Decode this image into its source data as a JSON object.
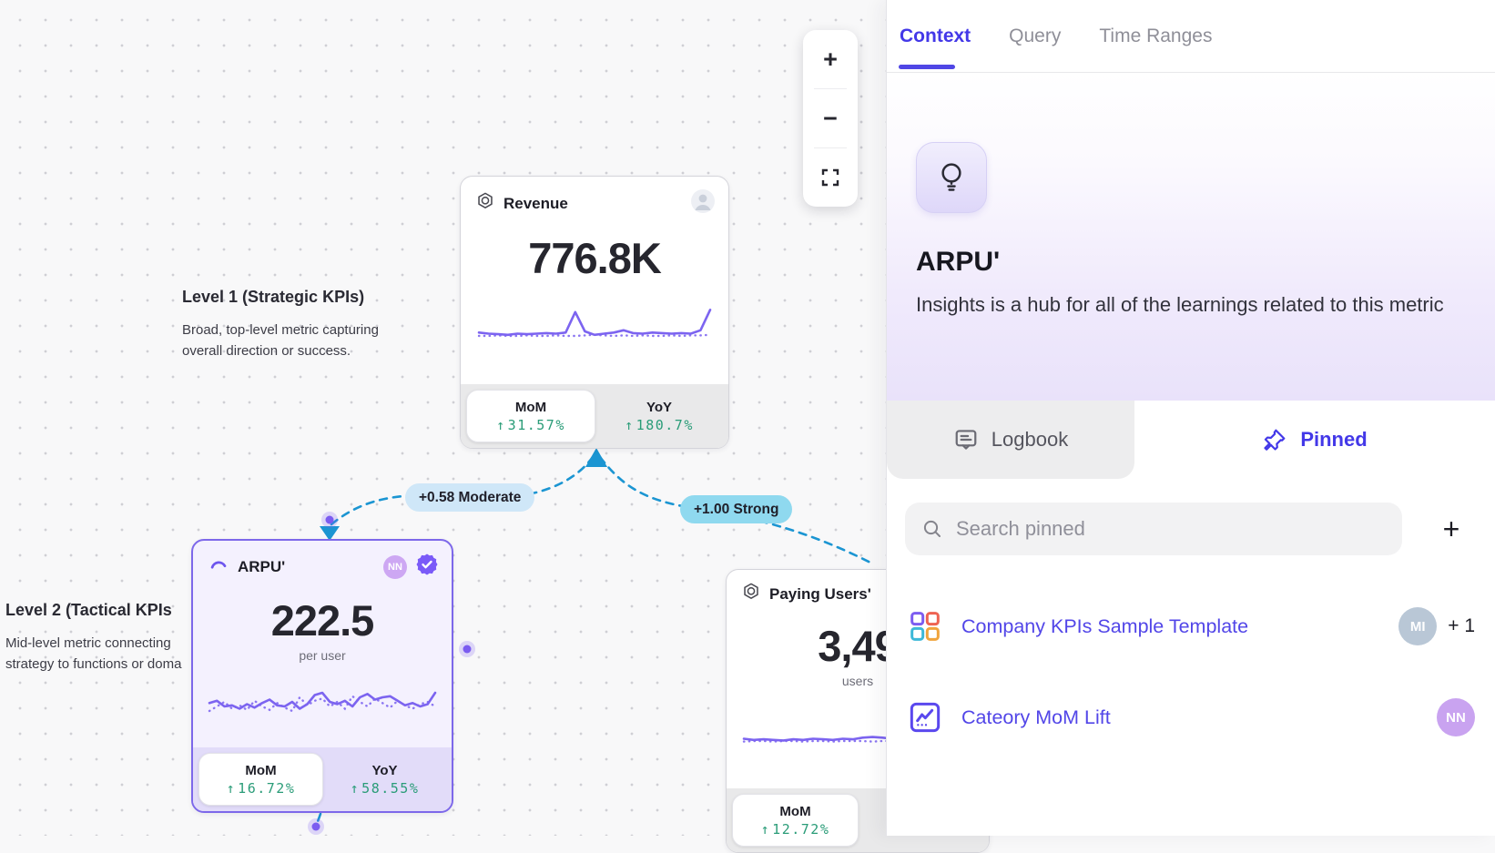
{
  "canvas": {
    "zoom_toolbar": {
      "zoom_in": "+",
      "zoom_out": "−"
    },
    "levels": [
      {
        "title": "Level 1 (Strategic KPIs)",
        "line1": "Broad, top-level metric capturing",
        "line2": "overall direction or success."
      },
      {
        "title": "Level 2 (Tactical KPIs",
        "line1": "Mid-level metric connecting",
        "line2": "strategy to functions or doma"
      }
    ],
    "edges": [
      {
        "label": "+0.58 Moderate",
        "strength": "moderate"
      },
      {
        "label": "+1.00 Strong",
        "strength": "strong"
      }
    ],
    "cards": {
      "revenue": {
        "title": "Revenue",
        "value": "776.8K",
        "stats": [
          {
            "label": "MoM",
            "dir": "↑",
            "value": "31.57%",
            "active": true
          },
          {
            "label": "YoY",
            "dir": "↑",
            "value": "180.7%",
            "active": false
          }
        ]
      },
      "arpu": {
        "title": "ARPU'",
        "value": "222.5",
        "unit": "per user",
        "avatar": "NN",
        "selected": true,
        "stats": [
          {
            "label": "MoM",
            "dir": "↑",
            "value": "16.72%",
            "active": true
          },
          {
            "label": "YoY",
            "dir": "↑",
            "value": "58.55%",
            "active": false
          }
        ]
      },
      "paying": {
        "title": "Paying Users'",
        "value": "3,49",
        "unit": "users",
        "stats": [
          {
            "label": "MoM",
            "dir": "↑",
            "value": "12.72%",
            "active": true
          }
        ]
      }
    },
    "sparklines": {
      "revenue": {
        "solid": [
          29,
          30,
          30.5,
          31,
          30,
          30.5,
          30,
          29.5,
          30,
          29,
          11,
          28,
          31,
          30,
          29,
          27,
          29.5,
          30,
          29,
          29.5,
          30,
          29.5,
          30,
          27,
          9
        ],
        "dotted": [
          32,
          32,
          31.5,
          32,
          32,
          31.5,
          32,
          32,
          31.5,
          32,
          32,
          31.5,
          31,
          31.5,
          32,
          31.5,
          32,
          31.5,
          32,
          32,
          31.5,
          32,
          31.5,
          31.5,
          31
        ]
      },
      "arpu": {
        "solid": [
          21,
          19,
          24,
          23,
          26,
          22,
          25,
          21,
          18,
          23,
          24,
          20,
          26,
          22,
          14,
          12,
          20,
          22,
          19,
          24,
          16,
          13,
          18,
          16,
          15,
          19,
          23,
          21,
          24,
          22,
          12
        ],
        "dotted": [
          28,
          24,
          20,
          26,
          23,
          27,
          19,
          24,
          27,
          21,
          25,
          28,
          16,
          23,
          19,
          17,
          24,
          20,
          26,
          15,
          20,
          24,
          17,
          21,
          25,
          19,
          23,
          26,
          22,
          20,
          24
        ]
      },
      "paying": {
        "solid": [
          30,
          31,
          30.5,
          31,
          31.5,
          30.5,
          31,
          30,
          30.5,
          31,
          30,
          30.5,
          29,
          28.5,
          29,
          30,
          29.5,
          28,
          9,
          18,
          29,
          30.5,
          30,
          29.5
        ],
        "dotted": [
          32.5,
          32,
          32,
          32.5,
          32,
          32,
          32.5,
          32,
          32,
          32.5,
          32,
          32,
          32,
          32.5,
          32,
          32,
          32.5,
          32,
          32,
          32,
          32.5,
          32,
          32,
          32
        ]
      }
    }
  },
  "panel": {
    "tabs": [
      {
        "label": "Context"
      },
      {
        "label": "Query"
      },
      {
        "label": "Time Ranges"
      }
    ],
    "insight": {
      "title": "ARPU'",
      "description": "Insights is a hub for all of the learnings related to this metric"
    },
    "subtabs": [
      {
        "label": "Logbook"
      },
      {
        "label": "Pinned"
      }
    ],
    "search": {
      "placeholder": "Search pinned"
    },
    "add_button": "+",
    "pinned_items": [
      {
        "label": "Company KPIs Sample Template",
        "avatar": "MI",
        "extra": "+ 1"
      },
      {
        "label": "Cateory MoM Lift",
        "avatar": "NN"
      }
    ]
  },
  "colors": {
    "accent_indigo": "#4338e8",
    "sparkline_purple": "#7c64f0",
    "positive_green": "#2a9c78",
    "edge_blue": "#1b95d2",
    "moderate_pill": "#cfe7f8",
    "strong_pill": "#8fd9ef"
  }
}
